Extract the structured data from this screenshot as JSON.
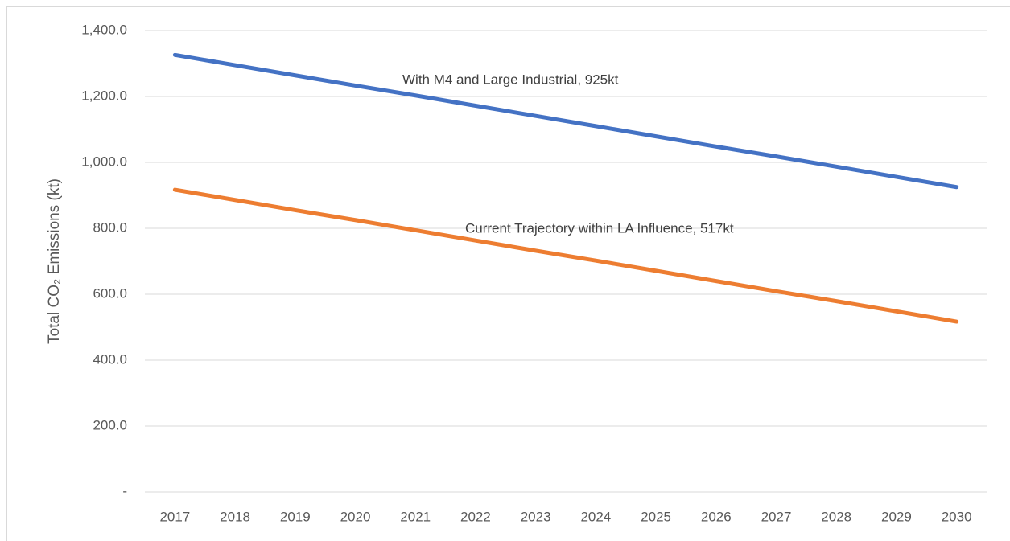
{
  "chart_data": {
    "type": "line",
    "y_label": "Total CO₂ Emissions (kt)",
    "categories": [
      "2017",
      "2018",
      "2019",
      "2020",
      "2021",
      "2022",
      "2023",
      "2024",
      "2025",
      "2026",
      "2027",
      "2028",
      "2029",
      "2030"
    ],
    "series": [
      {
        "name": "With M4 and Large Industrial",
        "color": "#4472c4",
        "values": [
          1326,
          1295,
          1264,
          1233,
          1203,
          1172,
          1141,
          1110,
          1079,
          1048,
          1018,
          987,
          956,
          925
        ]
      },
      {
        "name": "Current Trajectory within LA Influence",
        "color": "#ed7d31",
        "values": [
          917,
          886,
          855,
          825,
          794,
          763,
          732,
          702,
          671,
          640,
          609,
          579,
          548,
          517
        ]
      }
    ],
    "annotations": [
      "With M4 and Large Industrial, 925kt",
      "Current Trajectory within LA Influence, 517kt"
    ],
    "ylim": [
      0,
      1400
    ],
    "yticks": [
      {
        "value": 0,
        "label": "-"
      },
      {
        "value": 200,
        "label": "200.0"
      },
      {
        "value": 400,
        "label": "400.0"
      },
      {
        "value": 600,
        "label": "600.0"
      },
      {
        "value": 800,
        "label": "800.0"
      },
      {
        "value": 1000,
        "label": "1,000.0"
      },
      {
        "value": 1200,
        "label": "1,200.0"
      },
      {
        "value": 1400,
        "label": "1,400.0"
      }
    ],
    "grid": true
  }
}
